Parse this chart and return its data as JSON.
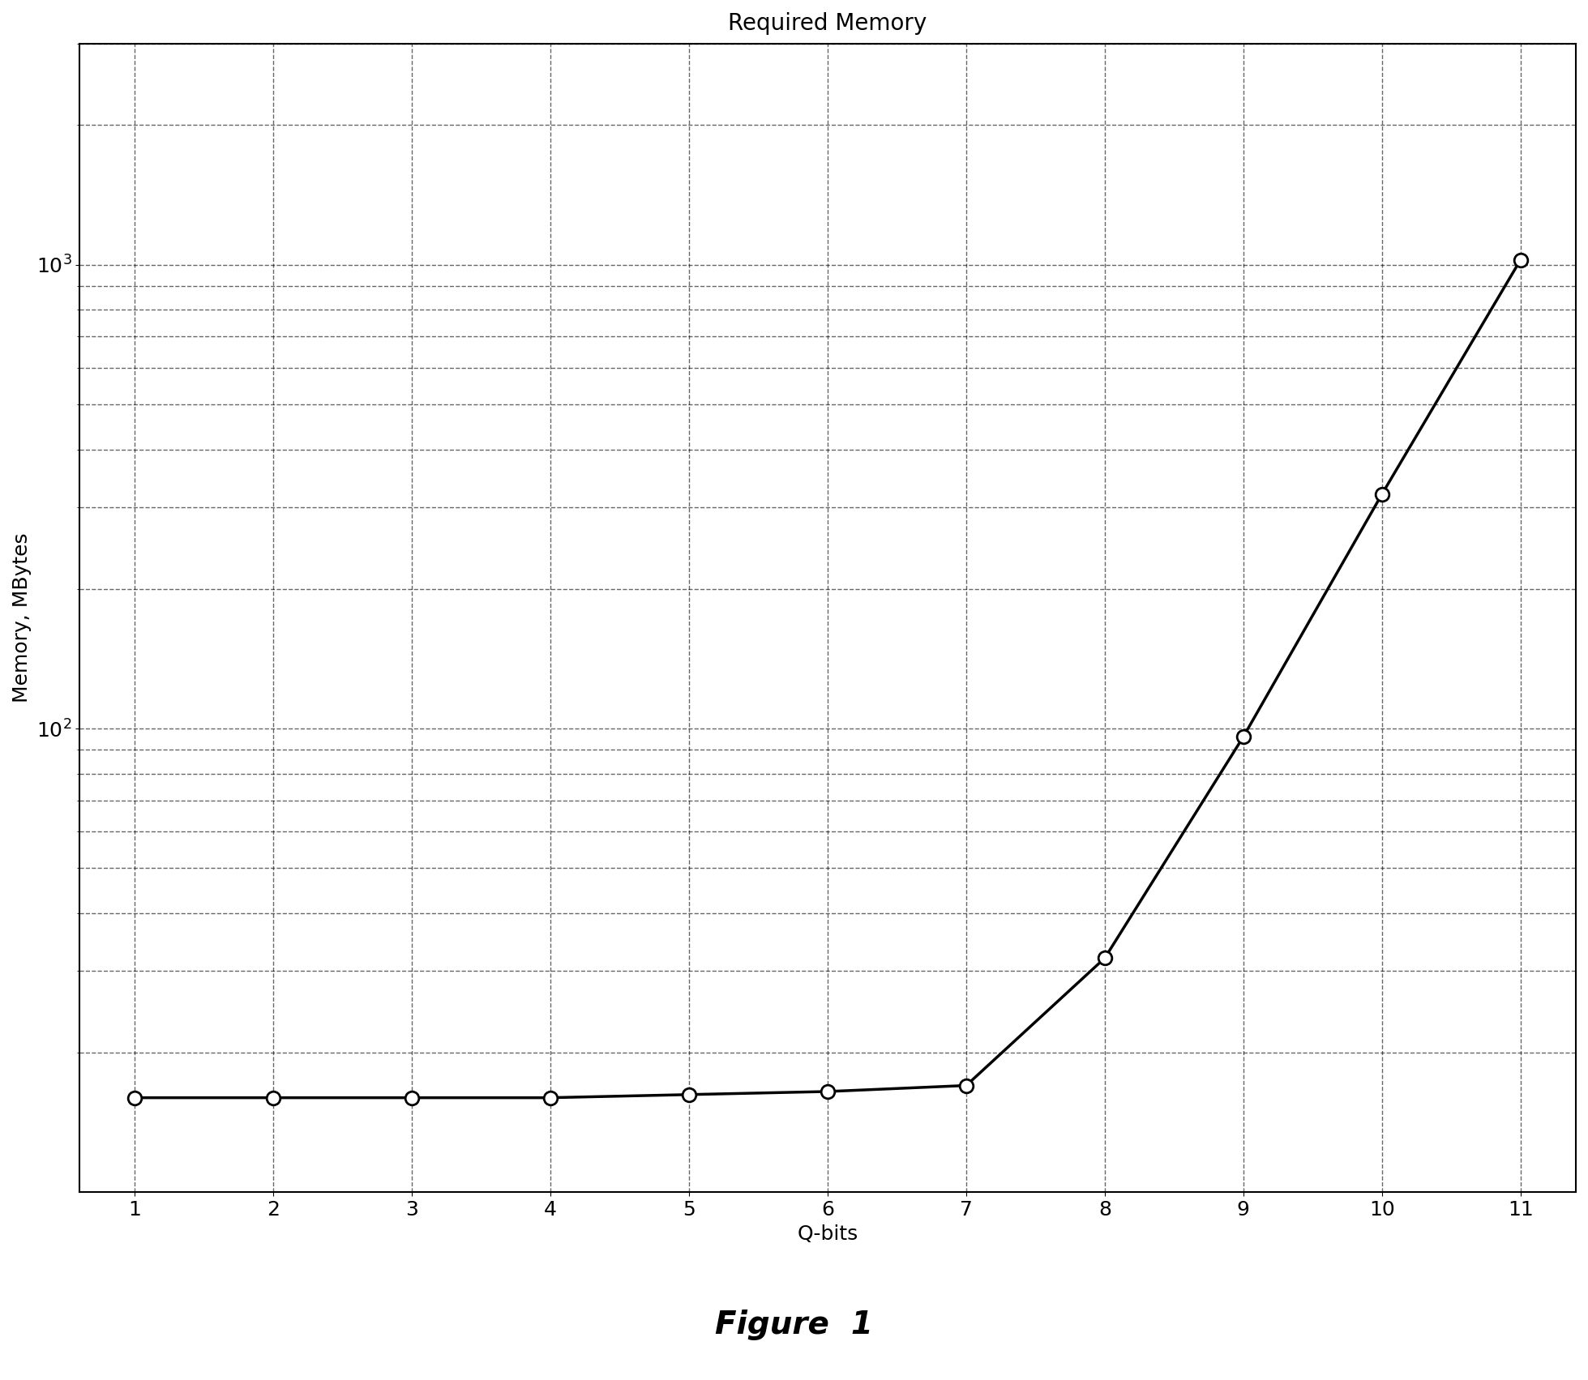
{
  "title": "Required Memory",
  "xlabel": "Q-bits",
  "ylabel": "Memory, MBytes",
  "x": [
    1,
    2,
    3,
    4,
    5,
    6,
    7,
    8,
    9,
    10,
    11
  ],
  "y": [
    16.0,
    16.0,
    16.0,
    16.0,
    16.25,
    16.5,
    17.0,
    32.0,
    96.0,
    320.0,
    1024.0
  ],
  "line_color": "#000000",
  "marker": "o",
  "marker_facecolor": "#ffffff",
  "marker_edgecolor": "#000000",
  "marker_size": 12,
  "marker_edge_width": 2.0,
  "line_width": 2.5,
  "grid_color": "#000000",
  "grid_linestyle": "--",
  "grid_alpha": 0.6,
  "grid_linewidth": 1.0,
  "xlim": [
    0.6,
    11.4
  ],
  "ylim": [
    10,
    3000
  ],
  "xticks": [
    1,
    2,
    3,
    4,
    5,
    6,
    7,
    8,
    9,
    10,
    11
  ],
  "ytick_major": [
    100,
    1000
  ],
  "figure_caption": "Figure  1",
  "caption_fontsize": 28,
  "title_fontsize": 20,
  "label_fontsize": 18,
  "tick_fontsize": 18,
  "background_color": "#ffffff",
  "figwidth": 19.59,
  "figheight": 17.03,
  "dpi": 100,
  "spine_linewidth": 1.5
}
